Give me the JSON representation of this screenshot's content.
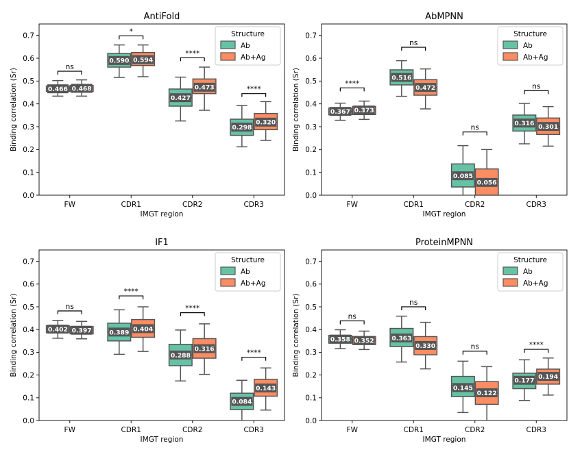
{
  "legend_title": "Structure",
  "series_names": [
    "Ab",
    "Ab+Ag"
  ],
  "colors": {
    "Ab": "#66c2a5",
    "Ab+Ag": "#fc8d62",
    "edge": "#555555",
    "median_box": "#555555"
  },
  "chart_data": [
    {
      "type": "box",
      "title": "AntiFold",
      "xlabel": "IMGT region",
      "ylabel": "Binding correlation (Sr)",
      "ylim": [
        0,
        0.75
      ],
      "yticks": [
        "0.0",
        "0.1",
        "0.2",
        "0.3",
        "0.4",
        "0.5",
        "0.6",
        "0.7"
      ],
      "categories": [
        "FW",
        "CDR1",
        "CDR2",
        "CDR3"
      ],
      "legend_position": "top-right",
      "series": [
        {
          "name": "Ab",
          "boxes": [
            {
              "median": 0.466,
              "label": "0.466",
              "q1": 0.455,
              "q3": 0.478,
              "whislo": 0.434,
              "whishi": 0.502
            },
            {
              "median": 0.59,
              "label": "0.590",
              "q1": 0.561,
              "q3": 0.621,
              "whislo": 0.516,
              "whishi": 0.658
            },
            {
              "median": 0.427,
              "label": "0.427",
              "q1": 0.39,
              "q3": 0.465,
              "whislo": 0.325,
              "whishi": 0.517
            },
            {
              "median": 0.298,
              "label": "0.298",
              "q1": 0.262,
              "q3": 0.333,
              "whislo": 0.212,
              "whishi": 0.393
            }
          ]
        },
        {
          "name": "Ab+Ag",
          "boxes": [
            {
              "median": 0.468,
              "label": "0.468",
              "q1": 0.454,
              "q3": 0.481,
              "whislo": 0.434,
              "whishi": 0.505
            },
            {
              "median": 0.594,
              "label": "0.594",
              "q1": 0.568,
              "q3": 0.625,
              "whislo": 0.519,
              "whishi": 0.658
            },
            {
              "median": 0.473,
              "label": "0.473",
              "q1": 0.445,
              "q3": 0.509,
              "whislo": 0.372,
              "whishi": 0.561
            },
            {
              "median": 0.32,
              "label": "0.320",
              "q1": 0.287,
              "q3": 0.358,
              "whislo": 0.24,
              "whishi": 0.41
            }
          ]
        }
      ],
      "significance": [
        {
          "label": "ns",
          "level": 0.543
        },
        {
          "label": "*",
          "level": 0.698
        },
        {
          "label": "****",
          "level": 0.602
        },
        {
          "label": "****",
          "level": 0.445
        }
      ]
    },
    {
      "type": "box",
      "title": "AbMPNN",
      "xlabel": "IMGT region",
      "ylabel": "Binding correlation (Sr)",
      "ylim": [
        0,
        0.75
      ],
      "yticks": [
        "0.0",
        "0.1",
        "0.2",
        "0.3",
        "0.4",
        "0.5",
        "0.6",
        "0.7"
      ],
      "categories": [
        "FW",
        "CDR1",
        "CDR2",
        "CDR3"
      ],
      "legend_position": "top-right",
      "series": [
        {
          "name": "Ab",
          "boxes": [
            {
              "median": 0.367,
              "label": "0.367",
              "q1": 0.352,
              "q3": 0.382,
              "whislo": 0.328,
              "whishi": 0.403
            },
            {
              "median": 0.516,
              "label": "0.516",
              "q1": 0.483,
              "q3": 0.549,
              "whislo": 0.433,
              "whishi": 0.589
            },
            {
              "median": 0.085,
              "label": "0.085",
              "q1": 0.036,
              "q3": 0.137,
              "whislo": 0.0,
              "whishi": 0.217
            },
            {
              "median": 0.316,
              "label": "0.316",
              "q1": 0.281,
              "q3": 0.351,
              "whislo": 0.225,
              "whishi": 0.402
            }
          ]
        },
        {
          "name": "Ab+Ag",
          "boxes": [
            {
              "median": 0.373,
              "label": "0.373",
              "q1": 0.353,
              "q3": 0.389,
              "whislo": 0.332,
              "whishi": 0.412
            },
            {
              "median": 0.472,
              "label": "0.472",
              "q1": 0.438,
              "q3": 0.506,
              "whislo": 0.378,
              "whishi": 0.553
            },
            {
              "median": 0.056,
              "label": "0.056",
              "q1": 0.0,
              "q3": 0.115,
              "whislo": 0.0,
              "whishi": 0.2
            },
            {
              "median": 0.301,
              "label": "0.301",
              "q1": 0.266,
              "q3": 0.338,
              "whislo": 0.215,
              "whishi": 0.388
            }
          ]
        }
      ],
      "significance": [
        {
          "label": "****",
          "level": 0.47
        },
        {
          "label": "ns",
          "level": 0.648
        },
        {
          "label": "ns",
          "level": 0.277
        },
        {
          "label": "ns",
          "level": 0.458
        }
      ]
    },
    {
      "type": "box",
      "title": "IF1",
      "xlabel": "IMGT region",
      "ylabel": "Binding correlation (Sr)",
      "ylim": [
        0,
        0.75
      ],
      "yticks": [
        "0.0",
        "0.1",
        "0.2",
        "0.3",
        "0.4",
        "0.5",
        "0.6",
        "0.7"
      ],
      "categories": [
        "FW",
        "CDR1",
        "CDR2",
        "CDR3"
      ],
      "legend_position": "top-right",
      "series": [
        {
          "name": "Ab",
          "boxes": [
            {
              "median": 0.402,
              "label": "0.402",
              "q1": 0.386,
              "q3": 0.417,
              "whislo": 0.362,
              "whishi": 0.44
            },
            {
              "median": 0.389,
              "label": "0.389",
              "q1": 0.35,
              "q3": 0.428,
              "whislo": 0.291,
              "whishi": 0.487
            },
            {
              "median": 0.288,
              "label": "0.288",
              "q1": 0.241,
              "q3": 0.335,
              "whislo": 0.174,
              "whishi": 0.398
            },
            {
              "median": 0.084,
              "label": "0.084",
              "q1": 0.048,
              "q3": 0.12,
              "whislo": 0.0,
              "whishi": 0.177
            }
          ]
        },
        {
          "name": "Ab+Ag",
          "boxes": [
            {
              "median": 0.397,
              "label": "0.397",
              "q1": 0.381,
              "q3": 0.413,
              "whislo": 0.359,
              "whishi": 0.436
            },
            {
              "median": 0.404,
              "label": "0.404",
              "q1": 0.366,
              "q3": 0.444,
              "whislo": 0.304,
              "whishi": 0.5
            },
            {
              "median": 0.316,
              "label": "0.316",
              "q1": 0.274,
              "q3": 0.36,
              "whislo": 0.203,
              "whishi": 0.425
            },
            {
              "median": 0.143,
              "label": "0.143",
              "q1": 0.107,
              "q3": 0.181,
              "whislo": 0.046,
              "whishi": 0.231
            }
          ]
        }
      ],
      "significance": [
        {
          "label": "ns",
          "level": 0.482
        },
        {
          "label": "****",
          "level": 0.548
        },
        {
          "label": "****",
          "level": 0.474
        },
        {
          "label": "****",
          "level": 0.278
        }
      ]
    },
    {
      "type": "box",
      "title": "ProteinMPNN",
      "xlabel": "IMGT region",
      "ylabel": "Binding correlation (Sr)",
      "ylim": [
        0,
        0.75
      ],
      "yticks": [
        "0.0",
        "0.1",
        "0.2",
        "0.3",
        "0.4",
        "0.5",
        "0.6",
        "0.7"
      ],
      "categories": [
        "FW",
        "CDR1",
        "CDR2",
        "CDR3"
      ],
      "legend_position": "top-right",
      "series": [
        {
          "name": "Ab",
          "boxes": [
            {
              "median": 0.358,
              "label": "0.358",
              "q1": 0.34,
              "q3": 0.374,
              "whislo": 0.316,
              "whishi": 0.399
            },
            {
              "median": 0.363,
              "label": "0.363",
              "q1": 0.325,
              "q3": 0.405,
              "whislo": 0.257,
              "whishi": 0.459
            },
            {
              "median": 0.145,
              "label": "0.145",
              "q1": 0.105,
              "q3": 0.194,
              "whislo": 0.035,
              "whishi": 0.261
            },
            {
              "median": 0.177,
              "label": "0.177",
              "q1": 0.14,
              "q3": 0.208,
              "whislo": 0.088,
              "whishi": 0.267
            }
          ]
        },
        {
          "name": "Ab+Ag",
          "boxes": [
            {
              "median": 0.352,
              "label": "0.352",
              "q1": 0.334,
              "q3": 0.369,
              "whislo": 0.312,
              "whishi": 0.393
            },
            {
              "median": 0.33,
              "label": "0.330",
              "q1": 0.289,
              "q3": 0.369,
              "whislo": 0.227,
              "whishi": 0.432
            },
            {
              "median": 0.122,
              "label": "0.122",
              "q1": 0.071,
              "q3": 0.171,
              "whislo": 0.0,
              "whishi": 0.237
            },
            {
              "median": 0.194,
              "label": "0.194",
              "q1": 0.16,
              "q3": 0.226,
              "whislo": 0.112,
              "whishi": 0.275
            }
          ]
        }
      ],
      "significance": [
        {
          "label": "ns",
          "level": 0.438
        },
        {
          "label": "ns",
          "level": 0.5
        },
        {
          "label": "ns",
          "level": 0.305
        },
        {
          "label": "****",
          "level": 0.313
        }
      ]
    }
  ]
}
